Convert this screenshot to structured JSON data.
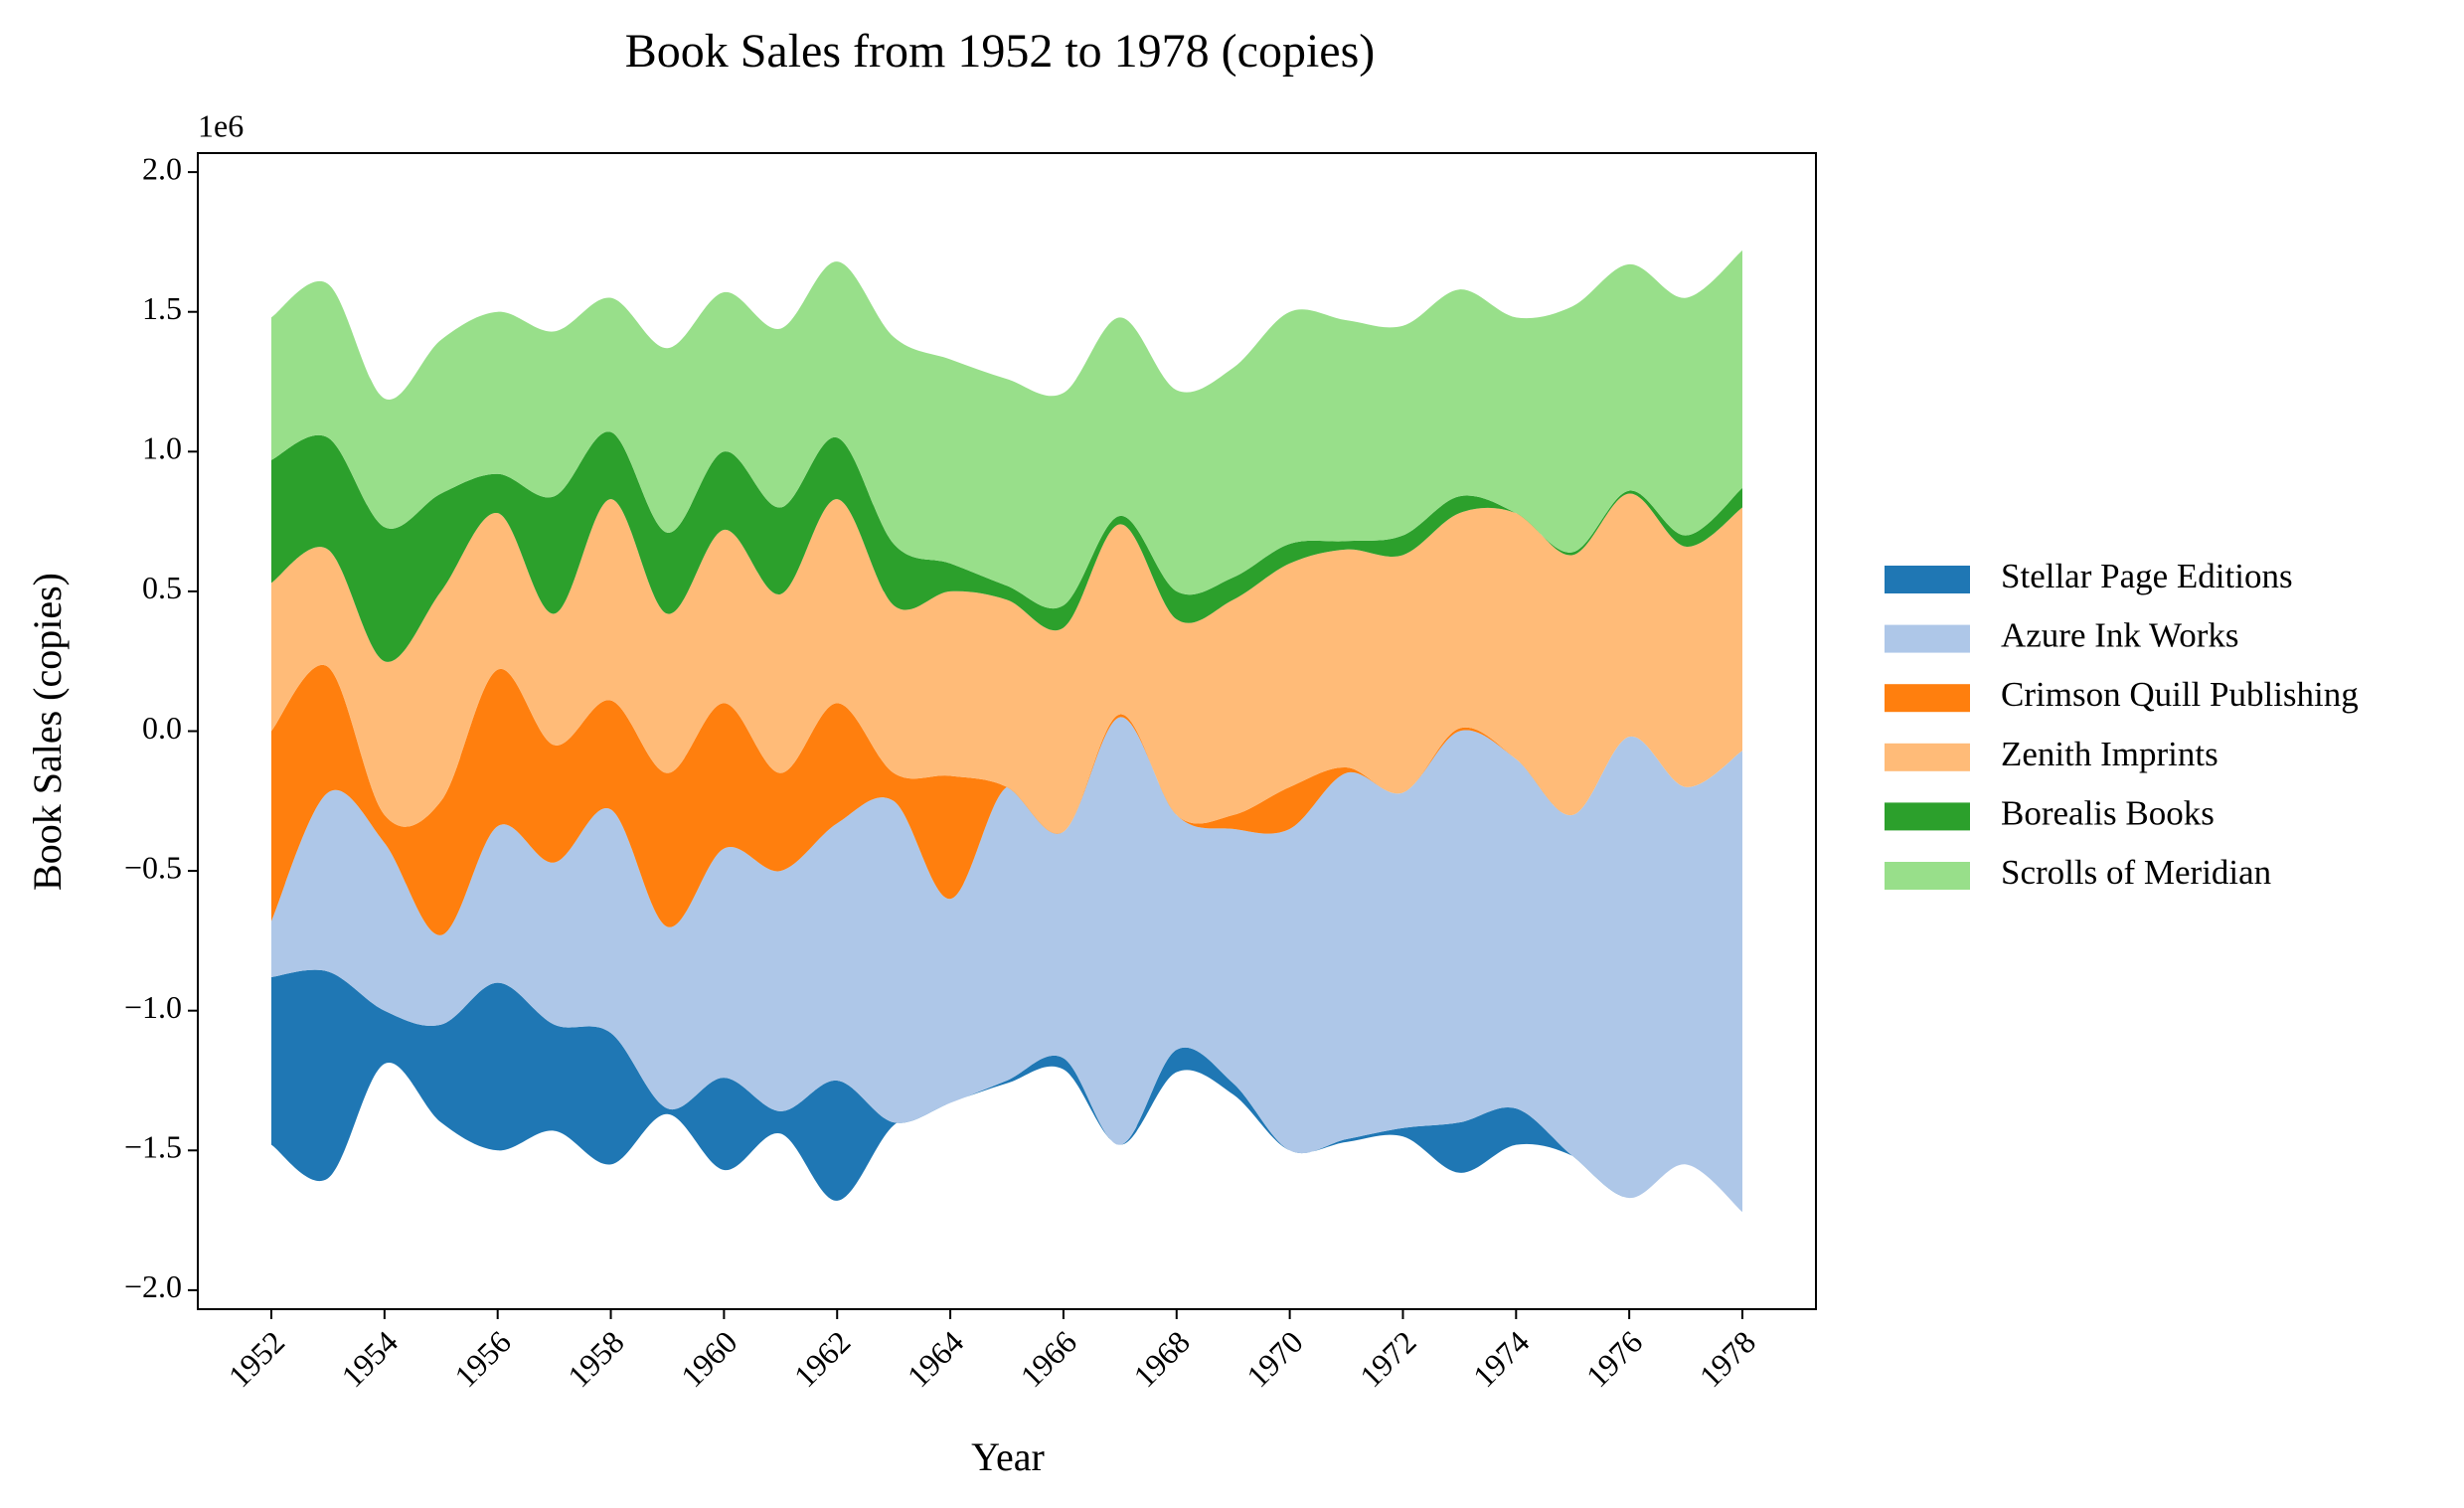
{
  "chart_data": {
    "type": "streamgraph",
    "title": "Book Sales from 1952 to 1978 (copies)",
    "x_label": "Year",
    "y_label": "Book Sales (copies)",
    "y_offset_label": "1e6",
    "x": [
      1952,
      1953,
      1954,
      1955,
      1956,
      1957,
      1958,
      1959,
      1960,
      1961,
      1962,
      1963,
      1964,
      1965,
      1966,
      1967,
      1968,
      1969,
      1970,
      1971,
      1972,
      1973,
      1974,
      1975,
      1976,
      1977,
      1978
    ],
    "series": [
      {
        "name": "Stellar Page Editions",
        "color": "#1f77b4",
        "values": [
          600000,
          740000,
          190000,
          350000,
          600000,
          380000,
          470000,
          20000,
          330000,
          80000,
          430000,
          10000,
          0,
          10000,
          40000,
          0,
          80000,
          40000,
          0,
          10000,
          30000,
          180000,
          130000,
          0,
          0,
          0,
          0
        ]
      },
      {
        "name": "Azure Ink Works",
        "color": "#aec7e8",
        "values": [
          200000,
          640000,
          600000,
          320000,
          560000,
          580000,
          800000,
          650000,
          820000,
          860000,
          920000,
          1150000,
          730000,
          1050000,
          810000,
          1530000,
          840000,
          910000,
          1150000,
          1310000,
          1200000,
          1400000,
          1250000,
          1220000,
          1650000,
          1350000,
          1650000
        ]
      },
      {
        "name": "Crimson Quill Publishing",
        "color": "#ff7f0e",
        "values": [
          680000,
          450000,
          100000,
          480000,
          560000,
          420000,
          390000,
          550000,
          520000,
          350000,
          430000,
          100000,
          440000,
          0,
          0,
          10000,
          0,
          50000,
          150000,
          20000,
          0,
          10000,
          0,
          0,
          0,
          0,
          0
        ]
      },
      {
        "name": "Zenith Imprints",
        "color": "#ffbb78",
        "values": [
          530000,
          420000,
          550000,
          750000,
          560000,
          470000,
          720000,
          570000,
          620000,
          640000,
          730000,
          600000,
          660000,
          670000,
          730000,
          680000,
          700000,
          770000,
          800000,
          780000,
          850000,
          770000,
          880000,
          930000,
          870000,
          860000,
          870000
        ]
      },
      {
        "name": "Borealis Books",
        "color": "#2ca02c",
        "values": [
          440000,
          400000,
          480000,
          350000,
          140000,
          420000,
          240000,
          290000,
          280000,
          310000,
          220000,
          220000,
          100000,
          50000,
          80000,
          30000,
          100000,
          80000,
          70000,
          30000,
          70000,
          60000,
          0,
          10000,
          10000,
          40000,
          70000
        ]
      },
      {
        "name": "Scrolls of Meridian",
        "color": "#98df8a",
        "values": [
          510000,
          550000,
          460000,
          550000,
          580000,
          590000,
          480000,
          660000,
          570000,
          640000,
          630000,
          740000,
          730000,
          740000,
          760000,
          710000,
          720000,
          750000,
          830000,
          790000,
          750000,
          740000,
          700000,
          880000,
          810000,
          850000,
          850000
        ]
      }
    ],
    "xlim": [
      1950.7,
      1979.3
    ],
    "xticks": [
      1952,
      1954,
      1956,
      1958,
      1960,
      1962,
      1964,
      1966,
      1968,
      1970,
      1972,
      1974,
      1976,
      1978
    ],
    "ylim": [
      -2068000,
      2068000
    ],
    "yticks": [
      {
        "value": -2000000,
        "label": "−2.0"
      },
      {
        "value": -1500000,
        "label": "−1.5"
      },
      {
        "value": -1000000,
        "label": "−1.0"
      },
      {
        "value": -500000,
        "label": "−0.5"
      },
      {
        "value": 0,
        "label": "0.0"
      },
      {
        "value": 500000,
        "label": "0.5"
      },
      {
        "value": 1000000,
        "label": "1.0"
      },
      {
        "value": 1500000,
        "label": "1.5"
      },
      {
        "value": 2000000,
        "label": "2.0"
      }
    ],
    "baseline": "symmetric",
    "legend_loc": "right",
    "grid": false
  }
}
